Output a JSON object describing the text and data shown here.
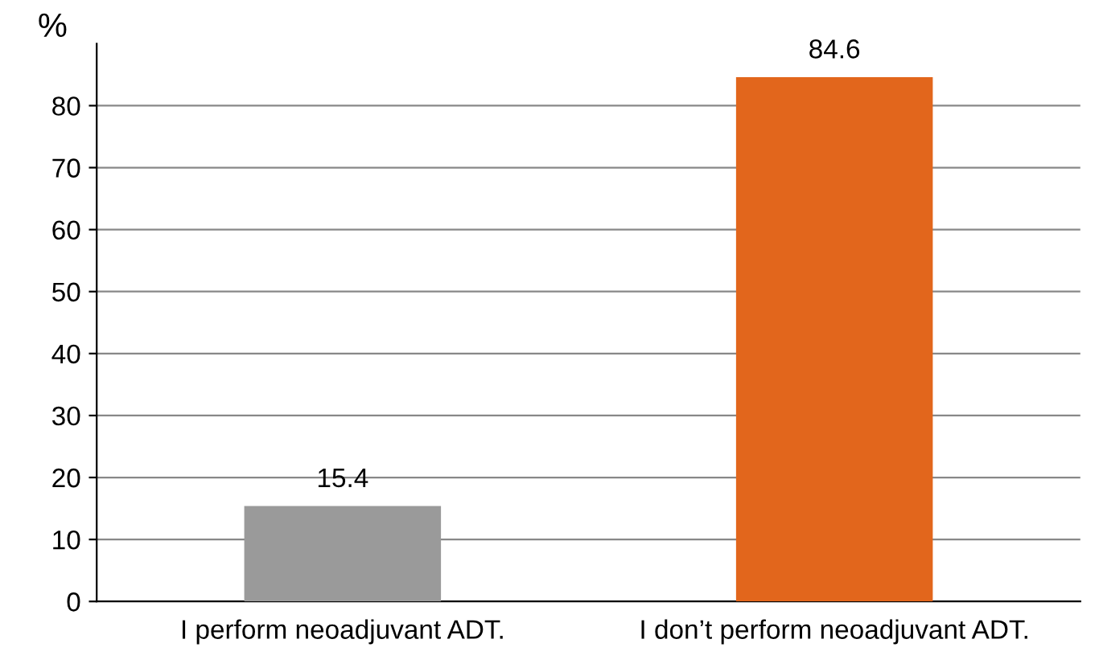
{
  "chart_data": {
    "type": "bar",
    "ylabel": "%",
    "categories": [
      "I perform neoadjuvant ADT.",
      "I don’t perform neoadjuvant ADT."
    ],
    "values": [
      15.4,
      84.6
    ],
    "colors": [
      "#9a9a9a",
      "#e2661c"
    ],
    "data_labels": true,
    "ylim": [
      0,
      90
    ],
    "yticks": [
      0,
      10,
      20,
      30,
      40,
      50,
      60,
      70,
      80
    ],
    "grid": "y",
    "legend": false
  }
}
